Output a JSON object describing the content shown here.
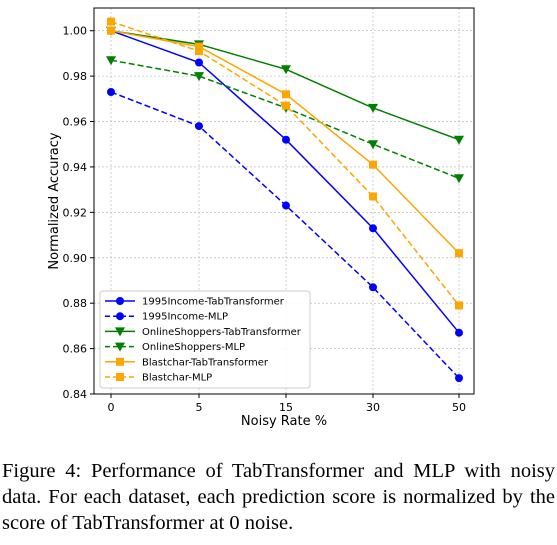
{
  "caption": "Figure 4: Performance of TabTransformer and MLP with noisy data. For each dataset, each prediction score is normalized by the score of TabTransformer at 0 noise.",
  "chart_data": {
    "type": "line",
    "title": "",
    "xlabel": "Noisy Rate %",
    "ylabel": "Normalized Accuracy",
    "categories": [
      "0",
      "5",
      "15",
      "30",
      "50"
    ],
    "ylim": [
      0.84,
      1.01
    ],
    "yticks": [
      0.84,
      0.86,
      0.88,
      0.9,
      0.92,
      0.94,
      0.96,
      0.98,
      1.0
    ],
    "ytick_labels": [
      "0.84",
      "0.86",
      "0.88",
      "0.90",
      "0.92",
      "0.94",
      "0.96",
      "0.98",
      "1.00"
    ],
    "grid": true,
    "legend_position": "lower-left",
    "series": [
      {
        "name": "1995Income-TabTransformer",
        "values": [
          1.0,
          0.986,
          0.952,
          0.913,
          0.867
        ],
        "color": "#0000ff",
        "linestyle": "solid",
        "marker": "circle"
      },
      {
        "name": "1995Income-MLP",
        "values": [
          0.973,
          0.958,
          0.923,
          0.887,
          0.847
        ],
        "color": "#0000ff",
        "linestyle": "dashed",
        "marker": "circle"
      },
      {
        "name": "OnlineShoppers-TabTransformer",
        "values": [
          1.0,
          0.994,
          0.983,
          0.966,
          0.952
        ],
        "color": "#008000",
        "linestyle": "solid",
        "marker": "triangle-down"
      },
      {
        "name": "OnlineShoppers-MLP",
        "values": [
          0.987,
          0.98,
          0.966,
          0.95,
          0.935
        ],
        "color": "#008000",
        "linestyle": "dashed",
        "marker": "triangle-down"
      },
      {
        "name": "Blastchar-TabTransformer",
        "values": [
          1.0,
          0.993,
          0.972,
          0.941,
          0.902
        ],
        "color": "#ffa500",
        "linestyle": "solid",
        "marker": "square"
      },
      {
        "name": "Blastchar-MLP",
        "values": [
          1.004,
          0.991,
          0.967,
          0.927,
          0.879
        ],
        "color": "#ffa500",
        "linestyle": "dashed",
        "marker": "square"
      }
    ]
  }
}
